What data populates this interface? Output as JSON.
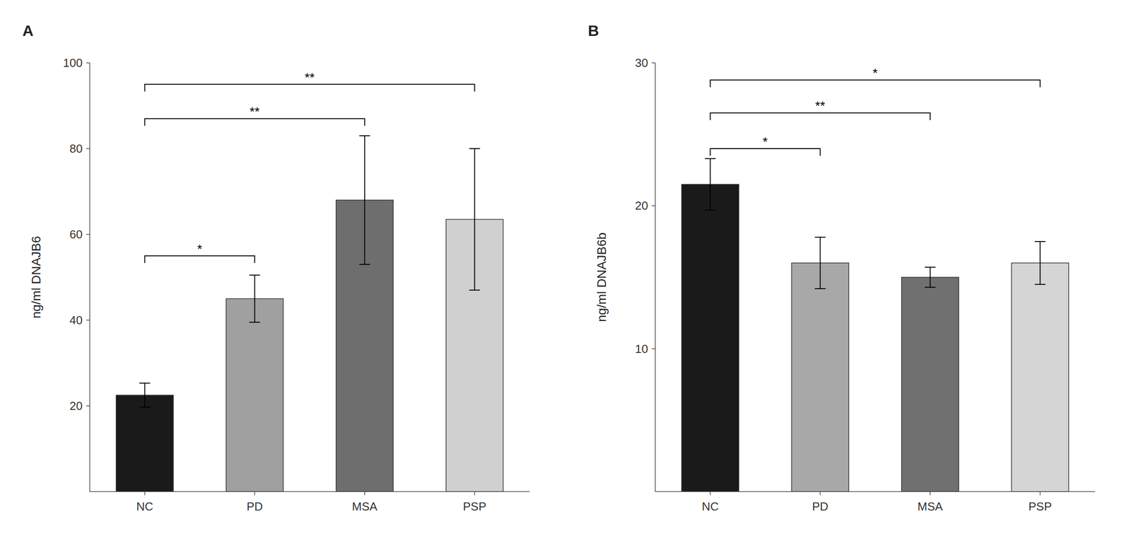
{
  "chart_data": [
    {
      "type": "bar",
      "title": "A",
      "categories": [
        "NC",
        "PD",
        "MSA",
        "PSP"
      ],
      "values": [
        22.5,
        45.0,
        68.0,
        63.5
      ],
      "errors": [
        2.8,
        5.5,
        15.0,
        16.5
      ],
      "colors": [
        "#1a1a1a",
        "#a0a0a0",
        "#6e6e6e",
        "#d0d0d0"
      ],
      "ylabel": "ng/ml DNAJB6",
      "ylim": [
        0,
        100
      ],
      "yticks": [
        20,
        40,
        60,
        80,
        100
      ],
      "grid": false,
      "annotations": [
        {
          "from": "NC",
          "to": "PD",
          "label": "*",
          "y": 55.0
        },
        {
          "from": "NC",
          "to": "MSA",
          "label": "**",
          "y": 87.0
        },
        {
          "from": "NC",
          "to": "PSP",
          "label": "**",
          "y": 95.0
        }
      ]
    },
    {
      "type": "bar",
      "title": "B",
      "categories": [
        "NC",
        "PD",
        "MSA",
        "PSP"
      ],
      "values": [
        21.5,
        16.0,
        15.0,
        16.0
      ],
      "errors": [
        1.8,
        1.8,
        0.7,
        1.5
      ],
      "colors": [
        "#1a1a1a",
        "#a8a8a8",
        "#707070",
        "#d5d5d5"
      ],
      "ylabel": "ng/ml DNAJB6b",
      "ylim": [
        0,
        30
      ],
      "yticks": [
        10,
        20,
        30
      ],
      "grid": false,
      "annotations": [
        {
          "from": "NC",
          "to": "PD",
          "label": "*",
          "y": 24.0
        },
        {
          "from": "NC",
          "to": "MSA",
          "label": "**",
          "y": 26.5
        },
        {
          "from": "NC",
          "to": "PSP",
          "label": "*",
          "y": 28.8
        }
      ]
    }
  ]
}
